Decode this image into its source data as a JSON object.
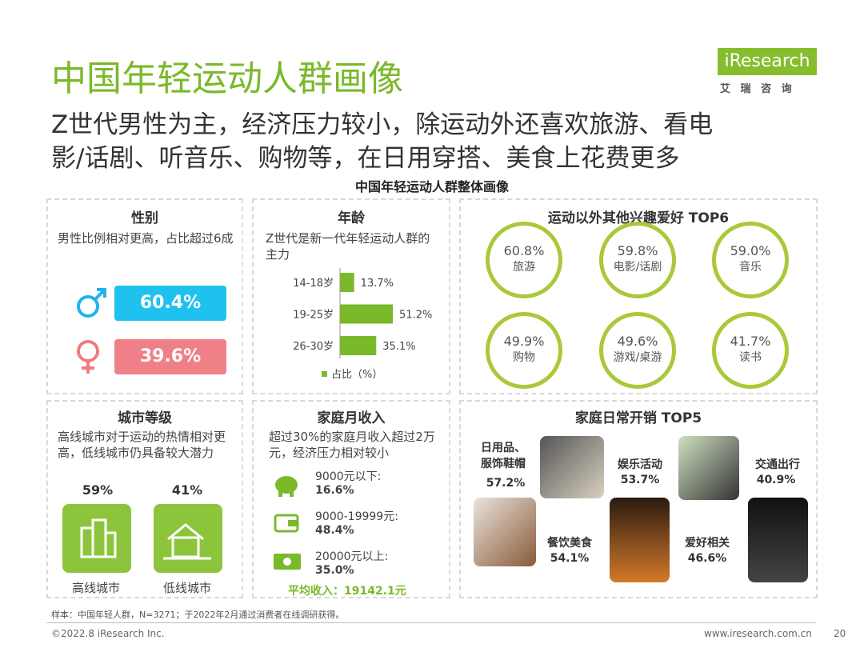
{
  "header": {
    "title": "中国年轻运动人群画像",
    "logo": "iResearch",
    "logo_sub": "艾 瑞 咨 询",
    "subtitle_lines": [
      "Z世代男性为主，经济压力较小，除运动外还喜欢旅游、看电",
      "影/话剧、听音乐、购物等，在日用穿搭、美食上花费更多"
    ],
    "section_title": "中国年轻运动人群整体画像"
  },
  "gender": {
    "title": "性别",
    "desc": "男性比例相对更高，占比超过6成",
    "male": "60.4%",
    "female": "39.6%"
  },
  "age": {
    "title": "年龄",
    "desc": "Z世代是新一代年轻运动人群的主力",
    "legend": "占比（%）",
    "items": [
      {
        "label": "14-18岁",
        "value": 13.7,
        "value_label": "13.7%"
      },
      {
        "label": "19-25岁",
        "value": 51.2,
        "value_label": "51.2%"
      },
      {
        "label": "26-30岁",
        "value": 35.1,
        "value_label": "35.1%"
      }
    ]
  },
  "interests": {
    "title": "运动以外其他兴趣爱好 TOP6",
    "items": [
      {
        "value": "60.8%",
        "label": "旅游"
      },
      {
        "value": "59.8%",
        "label": "电影/话剧"
      },
      {
        "value": "59.0%",
        "label": "音乐"
      },
      {
        "value": "49.9%",
        "label": "购物"
      },
      {
        "value": "49.6%",
        "label": "游戏/桌游"
      },
      {
        "value": "41.7%",
        "label": "读书"
      }
    ]
  },
  "city": {
    "title": "城市等级",
    "desc": "高线城市对于运动的热情相对更高，低线城市仍具备较大潜力",
    "items": [
      {
        "share": "59%",
        "label": "高线城市"
      },
      {
        "share": "41%",
        "label": "低线城市"
      }
    ]
  },
  "income": {
    "title": "家庭月收入",
    "desc": "超过30%的家庭月收入超过2万元，经济压力相对较小",
    "items": [
      {
        "label": "9000元以下:",
        "value": "16.6%"
      },
      {
        "label": "9000-19999元:",
        "value": "48.4%"
      },
      {
        "label": "20000元以上:",
        "value": "35.0%"
      }
    ],
    "average": "平均收入：19142.1元"
  },
  "expenses": {
    "title": "家庭日常开销 TOP5",
    "items": [
      {
        "label": "日用品、服饰鞋帽",
        "value": "57.2%"
      },
      {
        "label": "餐饮美食",
        "value": "54.1%"
      },
      {
        "label": "娱乐活动",
        "value": "53.7%"
      },
      {
        "label": "爱好相关",
        "value": "46.6%"
      },
      {
        "label": "交通出行",
        "value": "40.9%"
      }
    ]
  },
  "footer": {
    "note": "样本：中国年轻人群，N=3271；于2022年2月通过消费者在线调研获得。",
    "copyright": "©2022.8 iResearch Inc.",
    "url": "www.iresearch.com.cn",
    "page": "20"
  }
}
